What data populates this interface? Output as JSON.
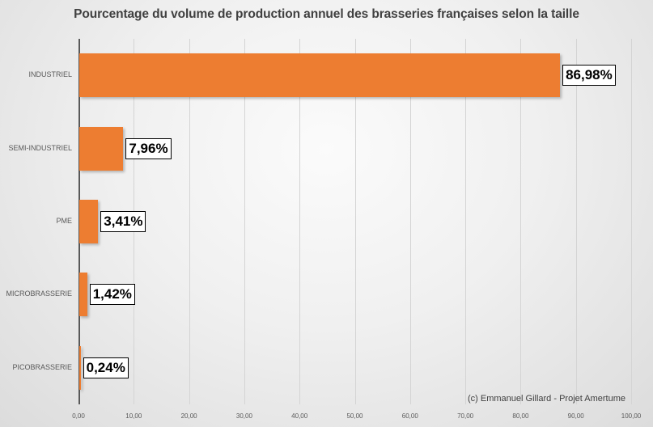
{
  "chart_data": {
    "type": "bar",
    "orientation": "horizontal",
    "title": "Pourcentage du volume de production annuel des brasseries françaises selon la taille",
    "categories": [
      "INDUSTRIEL",
      "SEMI-INDUSTRIEL",
      "PME",
      "MICROBRASSERIE",
      "PICOBRASSERIE"
    ],
    "values": [
      86.98,
      7.96,
      3.41,
      1.42,
      0.24
    ],
    "value_labels": [
      "86,98%",
      "7,96%",
      "3,41%",
      "1,42%",
      "0,24%"
    ],
    "xlabel": "",
    "ylabel": "",
    "xlim": [
      0,
      100
    ],
    "x_ticks": [
      "0,00",
      "10,00",
      "20,00",
      "30,00",
      "40,00",
      "50,00",
      "60,00",
      "70,00",
      "80,00",
      "90,00",
      "100,00"
    ],
    "grid": true,
    "legend": null,
    "bar_color": "#ed7d31",
    "annotation": "(c) Emmanuel Gillard - Projet Amertume"
  },
  "title": "Pourcentage du volume de production annuel des brasseries françaises selon la taille",
  "credit": "(c) Emmanuel Gillard - Projet Amertume"
}
